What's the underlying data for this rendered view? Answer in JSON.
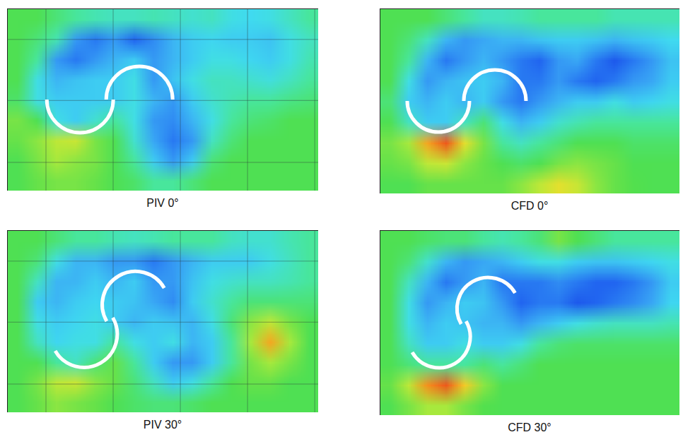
{
  "chart_data": [
    {
      "type": "contour",
      "title": "PIV 0°",
      "rotor_angle": 0,
      "grid": true,
      "zlim": [
        0,
        1
      ],
      "field": [
        [
          0.55,
          0.55,
          0.5,
          0.45,
          0.42,
          0.4,
          0.4,
          0.42,
          0.4,
          0.38,
          0.4,
          0.35,
          0.33,
          0.35,
          0.4,
          0.45
        ],
        [
          0.55,
          0.5,
          0.42,
          0.2,
          0.15,
          0.2,
          0.12,
          0.18,
          0.25,
          0.3,
          0.32,
          0.3,
          0.3,
          0.28,
          0.35,
          0.4
        ],
        [
          0.55,
          0.45,
          0.2,
          0.15,
          0.2,
          0.25,
          0.3,
          0.2,
          0.25,
          0.3,
          0.35,
          0.35,
          0.32,
          0.3,
          0.35,
          0.42
        ],
        [
          0.55,
          0.35,
          0.25,
          0.28,
          0.3,
          0.3,
          0.35,
          0.2,
          0.28,
          0.35,
          0.4,
          0.4,
          0.38,
          0.36,
          0.4,
          0.45
        ],
        [
          0.52,
          0.35,
          0.3,
          0.3,
          0.3,
          0.3,
          0.35,
          0.25,
          0.2,
          0.3,
          0.38,
          0.42,
          0.45,
          0.45,
          0.48,
          0.5
        ],
        [
          0.6,
          0.55,
          0.35,
          0.3,
          0.38,
          0.45,
          0.35,
          0.2,
          0.18,
          0.25,
          0.35,
          0.45,
          0.5,
          0.52,
          0.55,
          0.55
        ],
        [
          0.58,
          0.62,
          0.68,
          0.7,
          0.6,
          0.55,
          0.38,
          0.22,
          0.15,
          0.2,
          0.4,
          0.5,
          0.55,
          0.55,
          0.55,
          0.55
        ],
        [
          0.55,
          0.6,
          0.65,
          0.62,
          0.6,
          0.55,
          0.45,
          0.3,
          0.2,
          0.3,
          0.5,
          0.55,
          0.55,
          0.55,
          0.55,
          0.55
        ],
        [
          0.55,
          0.58,
          0.6,
          0.6,
          0.58,
          0.55,
          0.52,
          0.45,
          0.45,
          0.5,
          0.55,
          0.55,
          0.55,
          0.55,
          0.55,
          0.55
        ]
      ]
    },
    {
      "type": "contour",
      "title": "CFD 0°",
      "rotor_angle": 0,
      "grid": false,
      "zlim": [
        0,
        1
      ],
      "field": [
        [
          0.55,
          0.55,
          0.55,
          0.5,
          0.45,
          0.4,
          0.4,
          0.42,
          0.45,
          0.45,
          0.45,
          0.45,
          0.42,
          0.42,
          0.42,
          0.42
        ],
        [
          0.55,
          0.5,
          0.4,
          0.25,
          0.2,
          0.22,
          0.25,
          0.25,
          0.28,
          0.3,
          0.3,
          0.28,
          0.25,
          0.28,
          0.3,
          0.33
        ],
        [
          0.55,
          0.45,
          0.25,
          0.15,
          0.2,
          0.25,
          0.2,
          0.15,
          0.12,
          0.2,
          0.22,
          0.15,
          0.1,
          0.15,
          0.2,
          0.28
        ],
        [
          0.55,
          0.35,
          0.2,
          0.25,
          0.28,
          0.3,
          0.25,
          0.15,
          0.15,
          0.2,
          0.15,
          0.12,
          0.15,
          0.2,
          0.22,
          0.3
        ],
        [
          0.5,
          0.3,
          0.25,
          0.3,
          0.25,
          0.3,
          0.2,
          0.15,
          0.2,
          0.25,
          0.3,
          0.3,
          0.35,
          0.3,
          0.32,
          0.35
        ],
        [
          0.55,
          0.4,
          0.3,
          0.3,
          0.4,
          0.5,
          0.35,
          0.25,
          0.3,
          0.38,
          0.42,
          0.45,
          0.45,
          0.45,
          0.45,
          0.45
        ],
        [
          0.6,
          0.65,
          0.85,
          0.95,
          0.75,
          0.6,
          0.45,
          0.4,
          0.45,
          0.5,
          0.55,
          0.55,
          0.55,
          0.52,
          0.52,
          0.52
        ],
        [
          0.58,
          0.6,
          0.68,
          0.7,
          0.62,
          0.58,
          0.55,
          0.52,
          0.55,
          0.6,
          0.62,
          0.6,
          0.58,
          0.55,
          0.55,
          0.55
        ],
        [
          0.55,
          0.55,
          0.58,
          0.58,
          0.58,
          0.58,
          0.58,
          0.62,
          0.68,
          0.75,
          0.7,
          0.62,
          0.58,
          0.56,
          0.55,
          0.55
        ]
      ]
    },
    {
      "type": "contour",
      "title": "PIV 30°",
      "rotor_angle": 30,
      "grid": true,
      "zlim": [
        0,
        1
      ],
      "field": [
        [
          0.55,
          0.55,
          0.5,
          0.45,
          0.45,
          0.42,
          0.4,
          0.42,
          0.45,
          0.45,
          0.45,
          0.4,
          0.38,
          0.38,
          0.42,
          0.45
        ],
        [
          0.55,
          0.5,
          0.35,
          0.25,
          0.25,
          0.2,
          0.2,
          0.15,
          0.2,
          0.25,
          0.3,
          0.3,
          0.3,
          0.35,
          0.4,
          0.45
        ],
        [
          0.55,
          0.4,
          0.25,
          0.25,
          0.3,
          0.25,
          0.3,
          0.2,
          0.2,
          0.28,
          0.35,
          0.38,
          0.4,
          0.4,
          0.42,
          0.45
        ],
        [
          0.55,
          0.3,
          0.25,
          0.3,
          0.32,
          0.3,
          0.28,
          0.22,
          0.18,
          0.3,
          0.38,
          0.45,
          0.5,
          0.5,
          0.5,
          0.5
        ],
        [
          0.55,
          0.35,
          0.3,
          0.32,
          0.35,
          0.3,
          0.25,
          0.3,
          0.28,
          0.25,
          0.35,
          0.5,
          0.62,
          0.68,
          0.6,
          0.55
        ],
        [
          0.55,
          0.4,
          0.32,
          0.35,
          0.35,
          0.45,
          0.35,
          0.3,
          0.35,
          0.25,
          0.3,
          0.45,
          0.65,
          0.85,
          0.65,
          0.55
        ],
        [
          0.55,
          0.55,
          0.45,
          0.4,
          0.5,
          0.58,
          0.45,
          0.3,
          0.2,
          0.2,
          0.3,
          0.45,
          0.6,
          0.65,
          0.6,
          0.55
        ],
        [
          0.55,
          0.6,
          0.68,
          0.7,
          0.62,
          0.58,
          0.5,
          0.4,
          0.3,
          0.35,
          0.45,
          0.55,
          0.58,
          0.58,
          0.55,
          0.55
        ],
        [
          0.55,
          0.58,
          0.62,
          0.6,
          0.58,
          0.55,
          0.52,
          0.5,
          0.5,
          0.52,
          0.55,
          0.55,
          0.55,
          0.55,
          0.55,
          0.55
        ]
      ]
    },
    {
      "type": "contour",
      "title": "CFD 30°",
      "rotor_angle": 30,
      "grid": false,
      "zlim": [
        0,
        1
      ],
      "field": [
        [
          0.55,
          0.55,
          0.52,
          0.5,
          0.5,
          0.45,
          0.42,
          0.45,
          0.5,
          0.6,
          0.55,
          0.5,
          0.45,
          0.45,
          0.45,
          0.45
        ],
        [
          0.55,
          0.5,
          0.38,
          0.25,
          0.2,
          0.22,
          0.25,
          0.3,
          0.35,
          0.35,
          0.3,
          0.28,
          0.28,
          0.3,
          0.32,
          0.35
        ],
        [
          0.55,
          0.4,
          0.25,
          0.15,
          0.2,
          0.25,
          0.15,
          0.15,
          0.15,
          0.18,
          0.15,
          0.12,
          0.12,
          0.15,
          0.2,
          0.3
        ],
        [
          0.55,
          0.35,
          0.2,
          0.25,
          0.3,
          0.28,
          0.2,
          0.12,
          0.15,
          0.15,
          0.1,
          0.12,
          0.15,
          0.18,
          0.22,
          0.32
        ],
        [
          0.55,
          0.35,
          0.25,
          0.3,
          0.28,
          0.25,
          0.25,
          0.2,
          0.25,
          0.3,
          0.35,
          0.38,
          0.4,
          0.4,
          0.4,
          0.42
        ],
        [
          0.55,
          0.4,
          0.3,
          0.3,
          0.35,
          0.3,
          0.3,
          0.35,
          0.45,
          0.5,
          0.52,
          0.52,
          0.52,
          0.52,
          0.52,
          0.52
        ],
        [
          0.55,
          0.5,
          0.45,
          0.45,
          0.45,
          0.5,
          0.45,
          0.5,
          0.55,
          0.55,
          0.55,
          0.55,
          0.55,
          0.55,
          0.55,
          0.55
        ],
        [
          0.58,
          0.68,
          0.88,
          0.95,
          0.8,
          0.62,
          0.55,
          0.55,
          0.55,
          0.55,
          0.55,
          0.55,
          0.55,
          0.55,
          0.55,
          0.55
        ],
        [
          0.55,
          0.6,
          0.65,
          0.65,
          0.6,
          0.56,
          0.55,
          0.55,
          0.55,
          0.55,
          0.55,
          0.55,
          0.55,
          0.55,
          0.55,
          0.55
        ]
      ]
    }
  ]
}
